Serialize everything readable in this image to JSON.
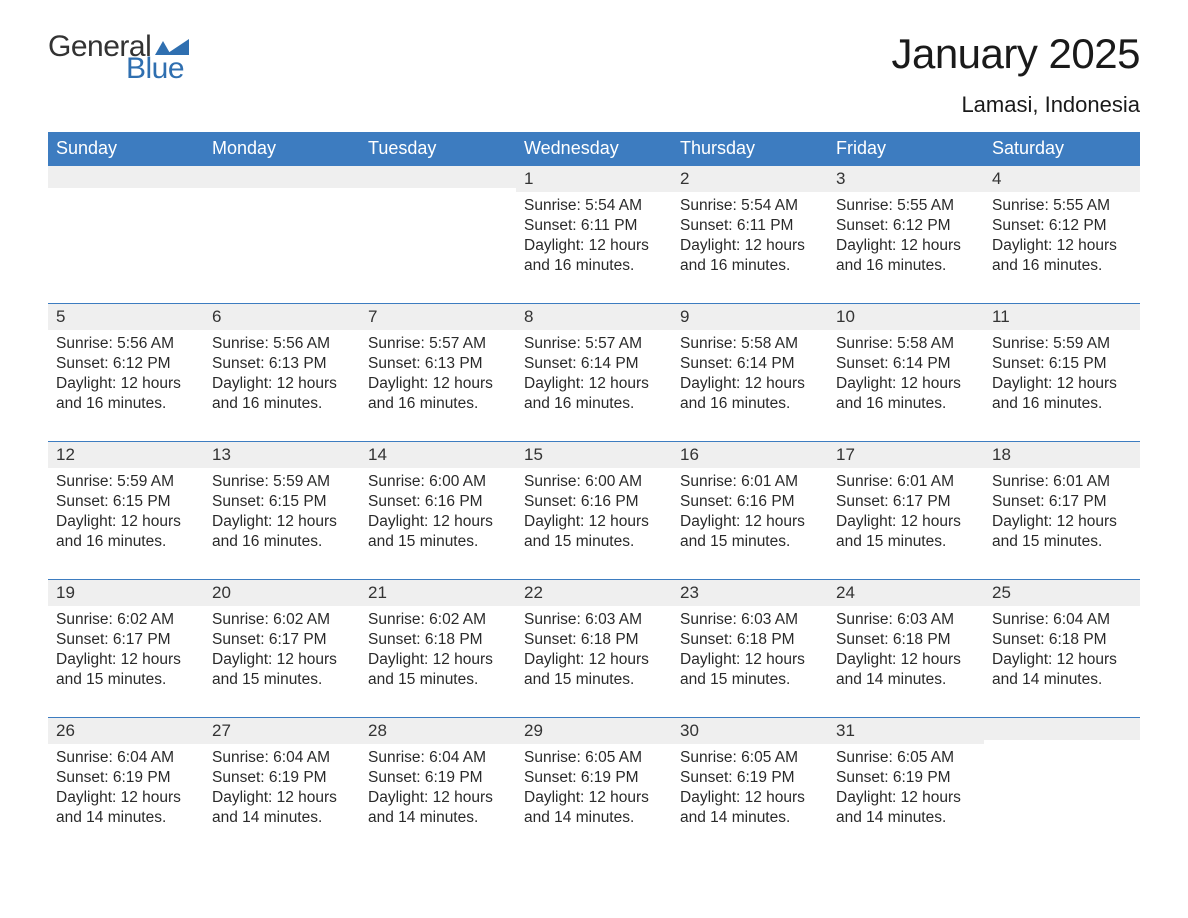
{
  "logo": {
    "general": "General",
    "blue": "Blue",
    "flag_color": "#2f6fb0"
  },
  "title": "January 2025",
  "location": "Lamasi, Indonesia",
  "colors": {
    "header_bg": "#3d7cc0",
    "header_text": "#ffffff",
    "daynum_bg": "#efefef",
    "row_border": "#3d7cc0",
    "text": "#333333",
    "body_bg": "#ffffff"
  },
  "calendar": {
    "type": "table",
    "columns": [
      "Sunday",
      "Monday",
      "Tuesday",
      "Wednesday",
      "Thursday",
      "Friday",
      "Saturday"
    ],
    "weeks": [
      [
        null,
        null,
        null,
        {
          "d": "1",
          "sr": "Sunrise: 5:54 AM",
          "ss": "Sunset: 6:11 PM",
          "dl1": "Daylight: 12 hours",
          "dl2": "and 16 minutes."
        },
        {
          "d": "2",
          "sr": "Sunrise: 5:54 AM",
          "ss": "Sunset: 6:11 PM",
          "dl1": "Daylight: 12 hours",
          "dl2": "and 16 minutes."
        },
        {
          "d": "3",
          "sr": "Sunrise: 5:55 AM",
          "ss": "Sunset: 6:12 PM",
          "dl1": "Daylight: 12 hours",
          "dl2": "and 16 minutes."
        },
        {
          "d": "4",
          "sr": "Sunrise: 5:55 AM",
          "ss": "Sunset: 6:12 PM",
          "dl1": "Daylight: 12 hours",
          "dl2": "and 16 minutes."
        }
      ],
      [
        {
          "d": "5",
          "sr": "Sunrise: 5:56 AM",
          "ss": "Sunset: 6:12 PM",
          "dl1": "Daylight: 12 hours",
          "dl2": "and 16 minutes."
        },
        {
          "d": "6",
          "sr": "Sunrise: 5:56 AM",
          "ss": "Sunset: 6:13 PM",
          "dl1": "Daylight: 12 hours",
          "dl2": "and 16 minutes."
        },
        {
          "d": "7",
          "sr": "Sunrise: 5:57 AM",
          "ss": "Sunset: 6:13 PM",
          "dl1": "Daylight: 12 hours",
          "dl2": "and 16 minutes."
        },
        {
          "d": "8",
          "sr": "Sunrise: 5:57 AM",
          "ss": "Sunset: 6:14 PM",
          "dl1": "Daylight: 12 hours",
          "dl2": "and 16 minutes."
        },
        {
          "d": "9",
          "sr": "Sunrise: 5:58 AM",
          "ss": "Sunset: 6:14 PM",
          "dl1": "Daylight: 12 hours",
          "dl2": "and 16 minutes."
        },
        {
          "d": "10",
          "sr": "Sunrise: 5:58 AM",
          "ss": "Sunset: 6:14 PM",
          "dl1": "Daylight: 12 hours",
          "dl2": "and 16 minutes."
        },
        {
          "d": "11",
          "sr": "Sunrise: 5:59 AM",
          "ss": "Sunset: 6:15 PM",
          "dl1": "Daylight: 12 hours",
          "dl2": "and 16 minutes."
        }
      ],
      [
        {
          "d": "12",
          "sr": "Sunrise: 5:59 AM",
          "ss": "Sunset: 6:15 PM",
          "dl1": "Daylight: 12 hours",
          "dl2": "and 16 minutes."
        },
        {
          "d": "13",
          "sr": "Sunrise: 5:59 AM",
          "ss": "Sunset: 6:15 PM",
          "dl1": "Daylight: 12 hours",
          "dl2": "and 16 minutes."
        },
        {
          "d": "14",
          "sr": "Sunrise: 6:00 AM",
          "ss": "Sunset: 6:16 PM",
          "dl1": "Daylight: 12 hours",
          "dl2": "and 15 minutes."
        },
        {
          "d": "15",
          "sr": "Sunrise: 6:00 AM",
          "ss": "Sunset: 6:16 PM",
          "dl1": "Daylight: 12 hours",
          "dl2": "and 15 minutes."
        },
        {
          "d": "16",
          "sr": "Sunrise: 6:01 AM",
          "ss": "Sunset: 6:16 PM",
          "dl1": "Daylight: 12 hours",
          "dl2": "and 15 minutes."
        },
        {
          "d": "17",
          "sr": "Sunrise: 6:01 AM",
          "ss": "Sunset: 6:17 PM",
          "dl1": "Daylight: 12 hours",
          "dl2": "and 15 minutes."
        },
        {
          "d": "18",
          "sr": "Sunrise: 6:01 AM",
          "ss": "Sunset: 6:17 PM",
          "dl1": "Daylight: 12 hours",
          "dl2": "and 15 minutes."
        }
      ],
      [
        {
          "d": "19",
          "sr": "Sunrise: 6:02 AM",
          "ss": "Sunset: 6:17 PM",
          "dl1": "Daylight: 12 hours",
          "dl2": "and 15 minutes."
        },
        {
          "d": "20",
          "sr": "Sunrise: 6:02 AM",
          "ss": "Sunset: 6:17 PM",
          "dl1": "Daylight: 12 hours",
          "dl2": "and 15 minutes."
        },
        {
          "d": "21",
          "sr": "Sunrise: 6:02 AM",
          "ss": "Sunset: 6:18 PM",
          "dl1": "Daylight: 12 hours",
          "dl2": "and 15 minutes."
        },
        {
          "d": "22",
          "sr": "Sunrise: 6:03 AM",
          "ss": "Sunset: 6:18 PM",
          "dl1": "Daylight: 12 hours",
          "dl2": "and 15 minutes."
        },
        {
          "d": "23",
          "sr": "Sunrise: 6:03 AM",
          "ss": "Sunset: 6:18 PM",
          "dl1": "Daylight: 12 hours",
          "dl2": "and 15 minutes."
        },
        {
          "d": "24",
          "sr": "Sunrise: 6:03 AM",
          "ss": "Sunset: 6:18 PM",
          "dl1": "Daylight: 12 hours",
          "dl2": "and 14 minutes."
        },
        {
          "d": "25",
          "sr": "Sunrise: 6:04 AM",
          "ss": "Sunset: 6:18 PM",
          "dl1": "Daylight: 12 hours",
          "dl2": "and 14 minutes."
        }
      ],
      [
        {
          "d": "26",
          "sr": "Sunrise: 6:04 AM",
          "ss": "Sunset: 6:19 PM",
          "dl1": "Daylight: 12 hours",
          "dl2": "and 14 minutes."
        },
        {
          "d": "27",
          "sr": "Sunrise: 6:04 AM",
          "ss": "Sunset: 6:19 PM",
          "dl1": "Daylight: 12 hours",
          "dl2": "and 14 minutes."
        },
        {
          "d": "28",
          "sr": "Sunrise: 6:04 AM",
          "ss": "Sunset: 6:19 PM",
          "dl1": "Daylight: 12 hours",
          "dl2": "and 14 minutes."
        },
        {
          "d": "29",
          "sr": "Sunrise: 6:05 AM",
          "ss": "Sunset: 6:19 PM",
          "dl1": "Daylight: 12 hours",
          "dl2": "and 14 minutes."
        },
        {
          "d": "30",
          "sr": "Sunrise: 6:05 AM",
          "ss": "Sunset: 6:19 PM",
          "dl1": "Daylight: 12 hours",
          "dl2": "and 14 minutes."
        },
        {
          "d": "31",
          "sr": "Sunrise: 6:05 AM",
          "ss": "Sunset: 6:19 PM",
          "dl1": "Daylight: 12 hours",
          "dl2": "and 14 minutes."
        },
        null
      ]
    ]
  }
}
